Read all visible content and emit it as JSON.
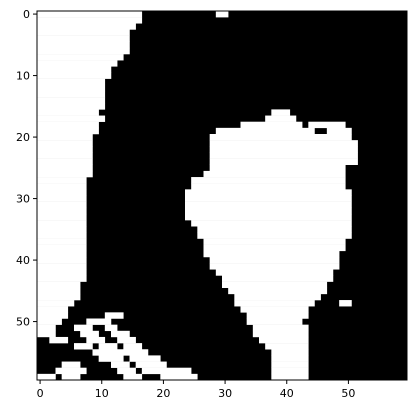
{
  "chart_data": {
    "type": "heatmap",
    "title": "",
    "xlabel": "",
    "ylabel": "",
    "colormap": "gray",
    "colors": {
      "zero": "#000000",
      "one": "#ffffff",
      "axis": "#000000"
    },
    "shape": [
      60,
      60
    ],
    "xlim": [
      -0.5,
      59.5
    ],
    "ylim": [
      59.5,
      -0.5
    ],
    "x_ticks": [
      0,
      10,
      20,
      30,
      40,
      50
    ],
    "y_ticks": [
      0,
      10,
      20,
      30,
      40,
      50
    ],
    "x_tick_labels": [
      "0",
      "10",
      "20",
      "30",
      "40",
      "50"
    ],
    "y_tick_labels": [
      "0",
      "10",
      "20",
      "30",
      "40",
      "50"
    ],
    "grid": false,
    "legend": "none",
    "white_runs": [
      [
        [
          0,
          16
        ],
        [
          29,
          30
        ]
      ],
      [
        [
          0,
          16
        ]
      ],
      [
        [
          0,
          15
        ]
      ],
      [
        [
          0,
          14
        ]
      ],
      [
        [
          0,
          14
        ]
      ],
      [
        [
          0,
          14
        ]
      ],
      [
        [
          0,
          14
        ]
      ],
      [
        [
          0,
          13
        ]
      ],
      [
        [
          0,
          12
        ]
      ],
      [
        [
          0,
          11
        ]
      ],
      [
        [
          0,
          11
        ]
      ],
      [
        [
          0,
          10
        ]
      ],
      [
        [
          0,
          10
        ]
      ],
      [
        [
          0,
          10
        ]
      ],
      [
        [
          0,
          10
        ]
      ],
      [
        [
          0,
          10
        ]
      ],
      [
        [
          0,
          9
        ],
        [
          38,
          40
        ]
      ],
      [
        [
          0,
          10
        ],
        [
          37,
          41
        ]
      ],
      [
        [
          0,
          9
        ],
        [
          33,
          42
        ],
        [
          44,
          49
        ]
      ],
      [
        [
          0,
          9
        ],
        [
          29,
          44
        ],
        [
          47,
          50
        ]
      ],
      [
        [
          0,
          8
        ],
        [
          28,
          50
        ]
      ],
      [
        [
          0,
          8
        ],
        [
          28,
          51
        ]
      ],
      [
        [
          0,
          8
        ],
        [
          28,
          51
        ]
      ],
      [
        [
          0,
          8
        ],
        [
          28,
          51
        ]
      ],
      [
        [
          0,
          8
        ],
        [
          28,
          51
        ]
      ],
      [
        [
          0,
          8
        ],
        [
          28,
          49
        ]
      ],
      [
        [
          0,
          8
        ],
        [
          27,
          49
        ]
      ],
      [
        [
          0,
          7
        ],
        [
          25,
          49
        ]
      ],
      [
        [
          0,
          7
        ],
        [
          25,
          49
        ]
      ],
      [
        [
          0,
          7
        ],
        [
          24,
          50
        ]
      ],
      [
        [
          0,
          7
        ],
        [
          24,
          50
        ]
      ],
      [
        [
          0,
          7
        ],
        [
          24,
          50
        ]
      ],
      [
        [
          0,
          7
        ],
        [
          24,
          50
        ]
      ],
      [
        [
          0,
          7
        ],
        [
          24,
          50
        ]
      ],
      [
        [
          0,
          7
        ],
        [
          25,
          50
        ]
      ],
      [
        [
          0,
          7
        ],
        [
          26,
          50
        ]
      ],
      [
        [
          0,
          7
        ],
        [
          26,
          50
        ]
      ],
      [
        [
          0,
          7
        ],
        [
          27,
          49
        ]
      ],
      [
        [
          0,
          7
        ],
        [
          27,
          49
        ]
      ],
      [
        [
          0,
          7
        ],
        [
          27,
          48
        ]
      ],
      [
        [
          0,
          7
        ],
        [
          28,
          48
        ]
      ],
      [
        [
          0,
          7
        ],
        [
          28,
          48
        ]
      ],
      [
        [
          0,
          7
        ],
        [
          29,
          47
        ]
      ],
      [
        [
          0,
          7
        ],
        [
          30,
          47
        ]
      ],
      [
        [
          0,
          6
        ],
        [
          30,
          46
        ]
      ],
      [
        [
          0,
          6
        ],
        [
          31,
          46
        ]
      ],
      [
        [
          0,
          6
        ],
        [
          32,
          45
        ]
      ],
      [
        [
          0,
          5
        ],
        [
          32,
          44
        ],
        [
          49,
          50
        ]
      ],
      [
        [
          0,
          4
        ],
        [
          33,
          43
        ]
      ],
      [
        [
          0,
          4
        ],
        [
          11,
          13
        ],
        [
          34,
          43
        ]
      ],
      [
        [
          0,
          3
        ],
        [
          8,
          11
        ],
        [
          34,
          42
        ]
      ],
      [
        [
          0,
          2
        ],
        [
          6,
          8
        ],
        [
          11,
          12
        ],
        [
          35,
          43
        ]
      ],
      [
        [
          0,
          2
        ],
        [
          7,
          9
        ],
        [
          12,
          14
        ],
        [
          35,
          43
        ]
      ],
      [
        [
          2,
          4
        ],
        [
          8,
          10
        ],
        [
          13,
          15
        ],
        [
          36,
          43
        ]
      ],
      [
        [
          6,
          8
        ],
        [
          10,
          12
        ],
        [
          14,
          16
        ],
        [
          37,
          43
        ]
      ],
      [
        [
          9,
          11
        ],
        [
          12,
          14
        ],
        [
          15,
          17
        ],
        [
          38,
          43
        ]
      ],
      [
        [
          10,
          13
        ],
        [
          15,
          19
        ],
        [
          38,
          43
        ]
      ],
      [
        [
          4,
          6
        ],
        [
          12,
          14
        ],
        [
          16,
          20
        ],
        [
          38,
          43
        ]
      ],
      [
        [
          3,
          7
        ],
        [
          13,
          15
        ],
        [
          17,
          24
        ],
        [
          38,
          43
        ]
      ],
      [
        [
          0,
          2
        ],
        [
          4,
          6
        ],
        [
          14,
          16
        ],
        [
          20,
          25
        ],
        [
          38,
          43
        ]
      ]
    ]
  }
}
